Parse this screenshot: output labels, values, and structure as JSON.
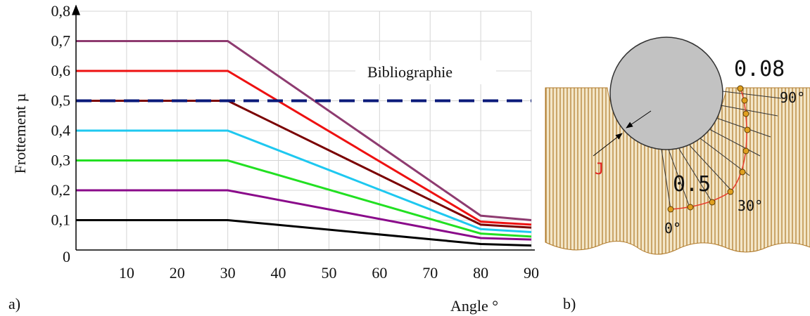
{
  "chart_data": {
    "type": "line",
    "x": [
      0,
      30,
      80,
      90
    ],
    "xlim": [
      0,
      90
    ],
    "xticks": [
      10,
      20,
      30,
      40,
      50,
      60,
      70,
      80,
      90
    ],
    "ylim": [
      0,
      0.8
    ],
    "yticks": [
      0,
      {
        "value": 0.1,
        "label": "0,1"
      },
      {
        "value": 0.2,
        "label": "0,2"
      },
      {
        "value": 0.3,
        "label": "0,3"
      },
      {
        "value": 0.4,
        "label": "0,4"
      },
      {
        "value": 0.5,
        "label": "0,5"
      },
      {
        "value": 0.6,
        "label": "0,6"
      },
      {
        "value": 0.7,
        "label": "0,7"
      },
      {
        "value": 0.8,
        "label": "0,8"
      }
    ],
    "grid": true,
    "x_label": "Angle °",
    "y_label": "Frottement µ",
    "series": [
      {
        "color": "#8e3b70",
        "values": [
          0.7,
          0.7,
          0.115,
          0.1
        ]
      },
      {
        "color": "#ee1111",
        "values": [
          0.6,
          0.6,
          0.095,
          0.085
        ]
      },
      {
        "color": "#7a0000",
        "values": [
          0.5,
          0.5,
          0.085,
          0.075
        ]
      },
      {
        "color": "#1ec8f0",
        "values": [
          0.4,
          0.4,
          0.07,
          0.06
        ]
      },
      {
        "color": "#22e022",
        "values": [
          0.3,
          0.3,
          0.055,
          0.045
        ]
      },
      {
        "color": "#8a0a8a",
        "values": [
          0.2,
          0.2,
          0.04,
          0.035
        ]
      },
      {
        "color": "#000000",
        "values": [
          0.1,
          0.1,
          0.02,
          0.015
        ]
      },
      {
        "name": "Bibliographie",
        "color": "#0a1a7a",
        "line_style": "dashed",
        "values": [
          0.5,
          0.5,
          0.5,
          0.5
        ]
      }
    ]
  },
  "panel_labels": [
    "a)",
    "b)"
  ],
  "diagram": {
    "labels": [
      "0.08",
      "90°",
      "J",
      "0.5",
      "30°",
      "0°"
    ]
  }
}
